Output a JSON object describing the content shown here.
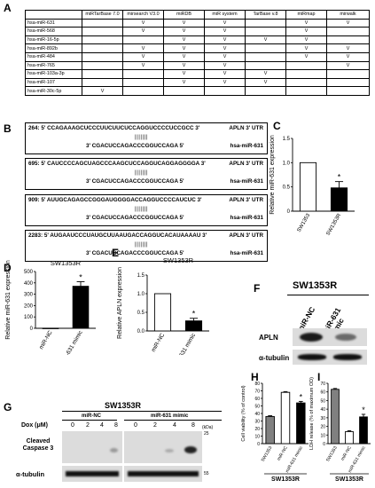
{
  "panels": {
    "A": "A",
    "B": "B",
    "C": "C",
    "D": "D",
    "E": "E",
    "F": "F",
    "G": "G",
    "H": "H",
    "I": "I"
  },
  "tableA": {
    "columns": [
      "",
      "miRTarBase 7.0",
      "mirsearch V3.0",
      "miRDB",
      "miR system",
      "TarBase v.8",
      "miRmap",
      "mirwalk"
    ],
    "check": "V",
    "rows": [
      {
        "name": "hsa-miR-631",
        "marks": [
          "",
          "V",
          "V",
          "V",
          "",
          "V",
          "V"
        ]
      },
      {
        "name": "hsa-miR-568",
        "marks": [
          "",
          "V",
          "V",
          "V",
          "",
          "V",
          ""
        ]
      },
      {
        "name": "hsa-miR-16-5p",
        "marks": [
          "",
          "",
          "V",
          "V",
          "V",
          "V",
          ""
        ]
      },
      {
        "name": "hsa-miR-892b",
        "marks": [
          "",
          "V",
          "V",
          "V",
          "",
          "V",
          "V"
        ]
      },
      {
        "name": "hsa-miR-484",
        "marks": [
          "",
          "V",
          "V",
          "V",
          "",
          "V",
          "V"
        ]
      },
      {
        "name": "hsa-miR-765",
        "marks": [
          "",
          "V",
          "V",
          "V",
          "",
          "",
          "V"
        ]
      },
      {
        "name": "hsa-miR-103a-3p",
        "marks": [
          "",
          "",
          "V",
          "V",
          "V",
          "",
          ""
        ]
      },
      {
        "name": "hsa-miR-107",
        "marks": [
          "",
          "",
          "V",
          "V",
          "V",
          "",
          ""
        ]
      },
      {
        "name": "hsa-miR-30c-5p",
        "marks": [
          "V",
          "",
          "",
          "",
          "",
          "",
          ""
        ]
      }
    ]
  },
  "panelB": [
    {
      "top": "264: 5' CCAGAAAGCUCCCUUCUUCUCCAGGUCCCCUCCGCC 3'",
      "utr": "APLN 3' UTR",
      "pairs": "|||||||",
      "bottom": "3' CGACUCCAGACCCGGUCCAGA 5'",
      "mir": "hsa-miR-631"
    },
    {
      "top": "695: 5' CAUCCCCAGCUAGCCCAAGCUCCAGGUCAGGAGGGGA 3'",
      "utr": "APLN 3' UTR",
      "pairs": "|||||||",
      "bottom": "3' CGACUCCAGACCCGGUCCAGA 5'",
      "mir": "hsa-miR-631"
    },
    {
      "top": "909: 5' AUUGCAGAGCCGGGAUGGGGACCAGGUCCCCAUCUC 3'",
      "utr": "APLN 3' UTR",
      "pairs": "|||||||",
      "bottom": "3' CGACUCCAGACCCGGUCCAGA 5'",
      "mir": "hsa-miR-631"
    },
    {
      "top": "2283: 5' AUGAAUCCCUAUGCUUAAUGACCAGGUCACAUAAAAU 3'",
      "utr": "APLN 3' UTR",
      "pairs": "|||||||",
      "bottom": "3' CGACUCCAGACCCGGUCCAGA 5'",
      "mir": "hsa-miR-631"
    }
  ],
  "chart_data": [
    {
      "panel": "C",
      "type": "bar",
      "categories": [
        "SW1353",
        "SW1353R"
      ],
      "values": [
        1.0,
        0.48
      ],
      "errors": [
        0,
        0.13
      ],
      "ylabel": "Relative miR-631 expression",
      "yticks": [
        "0",
        "0.5",
        "1.0",
        "1.5"
      ],
      "ylim": [
        0,
        1.5
      ],
      "star": "*"
    },
    {
      "panel": "D",
      "type": "bar",
      "title": "SW1353R",
      "categories": [
        "miR-NC",
        "miR-631 mimic"
      ],
      "values": [
        1,
        370
      ],
      "errors": [
        0,
        40
      ],
      "ylabel": "Relative miR-631 expression",
      "yticks": [
        "0",
        "100",
        "200",
        "300",
        "400",
        "500"
      ],
      "ylim": [
        0,
        500
      ],
      "star": "*"
    },
    {
      "panel": "E",
      "type": "bar",
      "title": "SW1353R",
      "categories": [
        "miR-NC",
        "miR-631 mimic"
      ],
      "values": [
        1.0,
        0.27
      ],
      "errors": [
        0,
        0.07
      ],
      "ylabel": "Relative APLN expression",
      "yticks": [
        "0.0",
        "0.5",
        "1.0",
        "1.5"
      ],
      "ylim": [
        0,
        1.5
      ],
      "star": "*"
    },
    {
      "panel": "H",
      "type": "bar",
      "categories": [
        "SW1353",
        "miR-NC",
        "miR-631 mimic"
      ],
      "values": [
        36,
        68,
        54
      ],
      "errors": [
        1,
        1,
        2
      ],
      "ylabel": "Cell viability (% of control)",
      "yticks": [
        "0",
        "10",
        "20",
        "30",
        "40",
        "50",
        "60",
        "70",
        "80"
      ],
      "ylim": [
        0,
        80
      ],
      "xlabel": "SW1353R",
      "star": "*"
    },
    {
      "panel": "I",
      "type": "bar",
      "categories": [
        "SW1353",
        "miR-NC",
        "miR-631 mimic"
      ],
      "values": [
        63,
        14,
        31
      ],
      "errors": [
        1,
        1,
        3
      ],
      "ylabel": "LDH release (% of maximum OD)",
      "yticks": [
        "0",
        "10",
        "20",
        "30",
        "40",
        "50",
        "60",
        "70"
      ],
      "ylim": [
        0,
        70
      ],
      "xlabel": "SW1353R",
      "star": "*"
    }
  ],
  "panelF": {
    "title": "SW1353R",
    "lanes": [
      "miR-NC",
      "miR-631 mimic"
    ],
    "rows": [
      "APLN",
      "α-tubulin"
    ]
  },
  "panelG": {
    "title": "SW1353R",
    "groups": [
      "miR-NC",
      "miR-631 mimic"
    ],
    "dox_label": "Dox (μM)",
    "doses": [
      "0",
      "2",
      "4",
      "8"
    ],
    "kda": "(kDa)",
    "rows": [
      "Cleaved Caspase 3",
      "α-tubulin"
    ],
    "markers": [
      "25",
      "55"
    ]
  },
  "colors": {
    "sw1353": "#808080",
    "nc": "#ffffff",
    "mimic": "#000000"
  }
}
